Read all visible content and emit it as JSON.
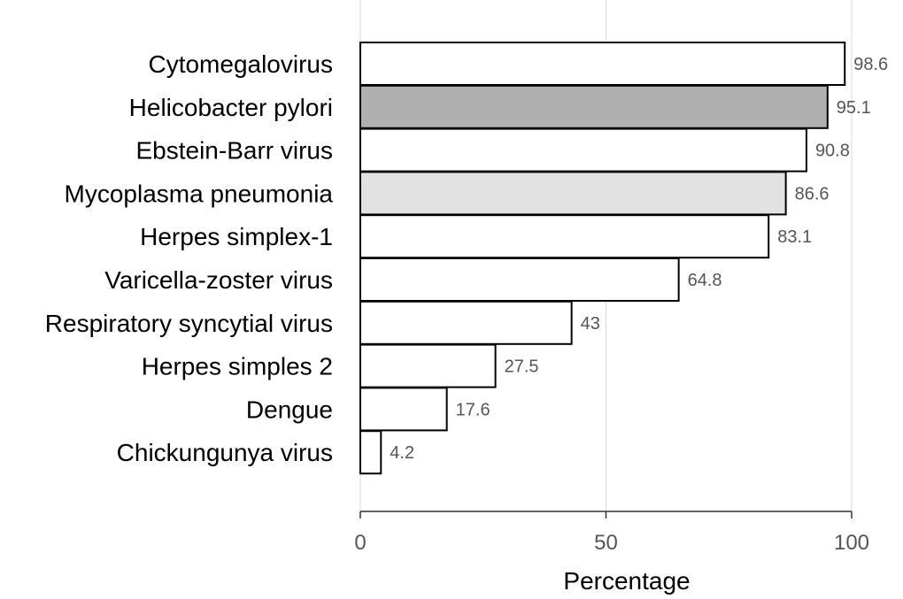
{
  "chart_data": {
    "type": "bar",
    "orientation": "horizontal",
    "categories": [
      "Cytomegalovirus",
      "Helicobacter pylori",
      "Ebstein-Barr virus",
      "Mycoplasma pneumonia",
      "Herpes simplex-1",
      "Varicella-zoster virus",
      "Respiratory syncytial virus",
      "Herpes simples 2",
      "Dengue",
      "Chickungunya virus"
    ],
    "values": [
      98.6,
      95.1,
      90.8,
      86.6,
      83.1,
      64.8,
      43,
      27.5,
      17.6,
      4.2
    ],
    "value_labels": [
      "98.6",
      "95.1",
      "90.8",
      "86.6",
      "83.1",
      "64.8",
      "43",
      "27.5",
      "17.6",
      "4.2"
    ],
    "bar_colors": [
      "#ffffff",
      "#b0b0b0",
      "#ffffff",
      "#e2e2e2",
      "#ffffff",
      "#ffffff",
      "#ffffff",
      "#ffffff",
      "#ffffff",
      "#ffffff"
    ],
    "title": "",
    "xlabel": "Percentage",
    "ylabel": "",
    "xlim": [
      0,
      100
    ],
    "xticks": [
      0,
      50,
      100
    ],
    "xtick_labels": [
      "0",
      "50",
      "100"
    ],
    "grid": "vertical",
    "legend": "none"
  }
}
